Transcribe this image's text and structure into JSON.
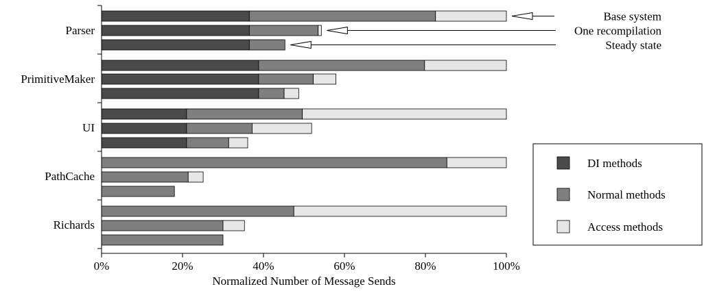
{
  "chart_data": {
    "type": "bar",
    "orientation": "horizontal",
    "stacked": true,
    "xlabel": "Normalized Number of Message Sends",
    "ylabel": "",
    "xlim": [
      0,
      100
    ],
    "x_ticks": [
      "0%",
      "20%",
      "40%",
      "60%",
      "80%",
      "100%"
    ],
    "grid": false,
    "legend_position": "right",
    "series": [
      {
        "name": "DI methods",
        "color": "#4a4a4a"
      },
      {
        "name": "Normal methods",
        "color": "#7f7f7f"
      },
      {
        "name": "Access methods",
        "color": "#e6e6e6"
      }
    ],
    "categories": [
      "Parser",
      "PrimitiveMaker",
      "UI",
      "PathCache",
      "Richards"
    ],
    "bar_variants": [
      "Base system",
      "One recompilation",
      "Steady state"
    ],
    "groups": [
      {
        "category": "Parser",
        "bars": [
          [
            36.5,
            46.0,
            17.5
          ],
          [
            36.5,
            17.0,
            0.8
          ],
          [
            36.5,
            8.8,
            0.0
          ]
        ]
      },
      {
        "category": "PrimitiveMaker",
        "bars": [
          [
            38.8,
            41.0,
            20.2
          ],
          [
            38.8,
            13.5,
            5.6
          ],
          [
            38.8,
            6.3,
            3.6
          ]
        ]
      },
      {
        "category": "UI",
        "bars": [
          [
            21.0,
            28.6,
            50.4
          ],
          [
            21.0,
            16.2,
            14.7
          ],
          [
            21.0,
            10.4,
            4.7
          ]
        ]
      },
      {
        "category": "PathCache",
        "bars": [
          [
            0.0,
            85.3,
            14.7
          ],
          [
            0.0,
            21.4,
            3.7
          ],
          [
            0.0,
            18.0,
            0.0
          ]
        ]
      },
      {
        "category": "Richards",
        "bars": [
          [
            0.0,
            47.5,
            52.5
          ],
          [
            0.0,
            30.0,
            5.3
          ],
          [
            0.0,
            30.0,
            0.0
          ]
        ]
      }
    ],
    "annotations": [
      {
        "text": "Base system",
        "category": "Parser",
        "bar": 0
      },
      {
        "text": "One recompilation",
        "category": "Parser",
        "bar": 1
      },
      {
        "text": "Steady state",
        "category": "Parser",
        "bar": 2
      }
    ]
  }
}
